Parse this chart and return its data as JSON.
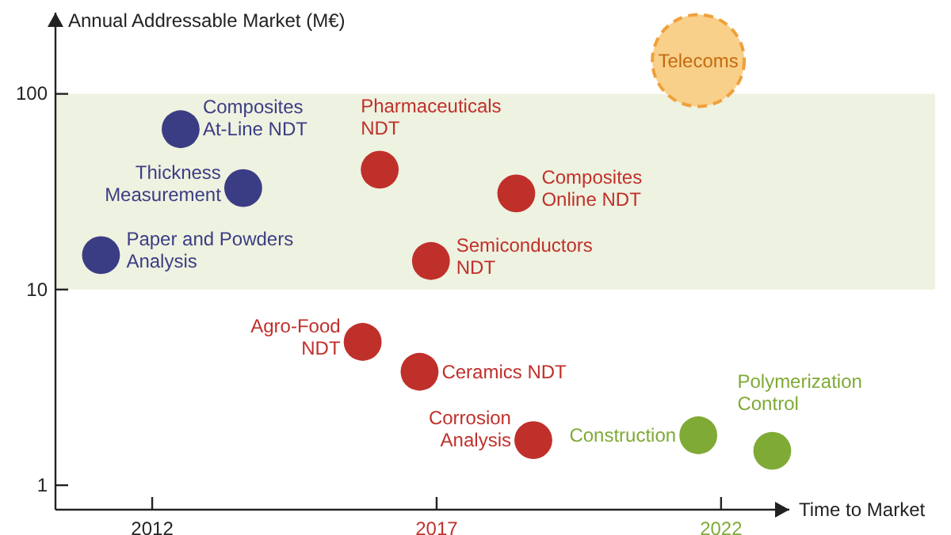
{
  "chart_data": {
    "type": "bubble",
    "ylabel": "Annual Addressable Market (M€)",
    "xlabel": "Time to Market",
    "log": "y",
    "xlim": [
      2010.3,
      2023.2
    ],
    "xticks": [
      2012,
      2017,
      2022
    ],
    "ylim": [
      0.75,
      260
    ],
    "yticks": [
      1,
      10,
      100
    ],
    "bands": [
      {
        "axis": "y",
        "from": 10,
        "to": 100,
        "color": "#eef2e0"
      }
    ],
    "series": [
      {
        "color": "#3b3d84",
        "x": [
          2012.5,
          2013.6,
          2011.1
        ],
        "values": [
          66,
          33,
          15
        ],
        "sizes": [
          0.17,
          0.17,
          0.17
        ]
      },
      {
        "color": "#c0302b",
        "x": [
          2016.0,
          2018.4,
          2016.9,
          2015.7,
          2016.7,
          2018.7
        ],
        "values": [
          41,
          31,
          14,
          5.4,
          3.8,
          1.7
        ],
        "sizes": [
          0.17,
          0.17,
          0.17,
          0.17,
          0.17,
          0.17
        ]
      },
      {
        "color": "#7faa36",
        "x": [
          2021.6,
          2022.9
        ],
        "values": [
          1.8,
          1.5
        ],
        "sizes": [
          0.17,
          0.17
        ]
      },
      {
        "color": "#f8d08a",
        "x": [
          2021.6
        ],
        "values": [
          148
        ],
        "sizes": [
          1
        ],
        "line_style": "dashed"
      }
    ],
    "annotations": [
      {
        "text": "Composites\nAt-Line NDT",
        "x": 2012.5,
        "y": 66
      },
      {
        "text": "Thickness\nMeasurement",
        "x": 2013.6,
        "y": 33
      },
      {
        "text": "Paper and Powders\nAnalysis",
        "x": 2011.1,
        "y": 15
      },
      {
        "text": "Pharmaceuticals\nNDT",
        "x": 2016.0,
        "y": 41
      },
      {
        "text": "Composites\nOnline NDT",
        "x": 2018.4,
        "y": 31
      },
      {
        "text": "Semiconductors\nNDT",
        "x": 2016.9,
        "y": 14
      },
      {
        "text": "Agro-Food\nNDT",
        "x": 2015.7,
        "y": 5.4
      },
      {
        "text": "Ceramics NDT",
        "x": 2016.7,
        "y": 3.8
      },
      {
        "text": "Corrosion\nAnalysis",
        "x": 2018.7,
        "y": 1.7
      },
      {
        "text": "Construction",
        "x": 2021.6,
        "y": 1.8
      },
      {
        "text": "Polymerization\nControl",
        "x": 2022.9,
        "y": 1.5
      },
      {
        "text": "Telecoms",
        "x": 2021.6,
        "y": 148
      }
    ]
  }
}
